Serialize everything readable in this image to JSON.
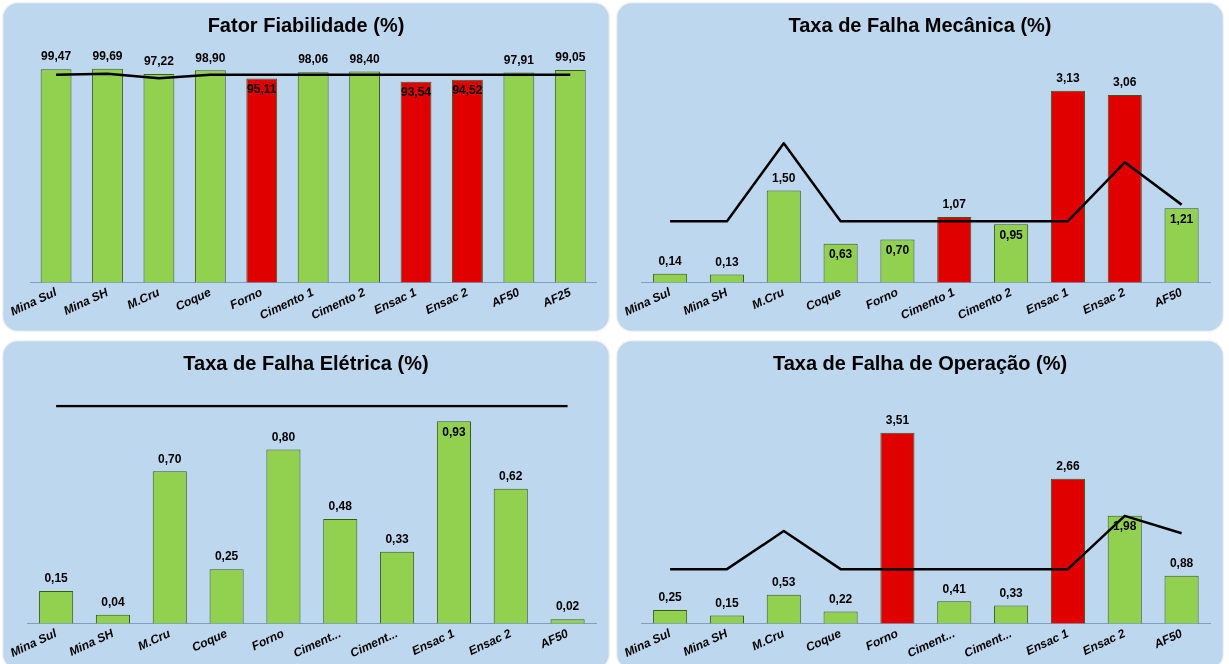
{
  "chart_data": [
    {
      "type": "bar",
      "title": "Fator Fiabilidade (%)",
      "categories": [
        "Mina Sul",
        "Mina SH",
        "M.Cru",
        "Coque",
        "Forno",
        "Cimento 1",
        "Cimento 2",
        "Ensac 1",
        "Ensac 2",
        "AF50",
        "AF25"
      ],
      "tick_labels": "x",
      "legend": false,
      "grid": false,
      "series": [
        {
          "values": [
            99.47,
            99.69,
            97.22,
            98.9,
            95.11,
            98.06,
            98.4,
            93.54,
            94.52,
            97.91,
            99.05
          ],
          "value_labels": [
            "99,47",
            "99,69",
            "97,22",
            "98,90",
            "95,11",
            "98,06",
            "98,40",
            "93,54",
            "94,52",
            "97,91",
            "99,05"
          ],
          "colors": [
            "#92d050",
            "#92d050",
            "#92d050",
            "#92d050",
            "#e00000",
            "#92d050",
            "#92d050",
            "#e00000",
            "#e00000",
            "#92d050",
            "#92d050"
          ]
        },
        {
          "type": "line",
          "color": "#000000",
          "values": [
            96.8,
            97.3,
            95.2,
            96.8,
            96.8,
            96.8,
            96.8,
            96.8,
            96.8,
            96.8,
            96.8
          ]
        }
      ]
    },
    {
      "type": "bar",
      "title": "Taxa de Falha Mecânica (%)",
      "categories": [
        "Mina Sul",
        "Mina SH",
        "M.Cru",
        "Coque",
        "Forno",
        "Cimento 1",
        "Cimento 2",
        "Ensac 1",
        "Ensac 2",
        "AF50"
      ],
      "tick_labels": "x",
      "legend": false,
      "grid": false,
      "series": [
        {
          "values": [
            0.14,
            0.13,
            1.5,
            0.63,
            0.7,
            1.07,
            0.95,
            3.13,
            3.06,
            1.21
          ],
          "value_labels": [
            "0,14",
            "0,13",
            "1,50",
            "0,63",
            "0,70",
            "1,07",
            "0,95",
            "3,13",
            "3,06",
            "1,21"
          ],
          "colors": [
            "#92d050",
            "#92d050",
            "#92d050",
            "#92d050",
            "#92d050",
            "#e00000",
            "#92d050",
            "#e00000",
            "#e00000",
            "#92d050"
          ]
        },
        {
          "type": "line",
          "color": "#000000",
          "values": [
            1.0,
            1.0,
            2.27,
            1.0,
            1.0,
            1.0,
            1.0,
            1.0,
            1.96,
            1.27
          ]
        }
      ]
    },
    {
      "type": "bar",
      "title": "Taxa de Falha Elétrica (%)",
      "categories": [
        "Mina Sul",
        "Mina SH",
        "M.Cru",
        "Coque",
        "Forno",
        "Ciment...",
        "Ciment...",
        "Ensac 1",
        "Ensac 2",
        "AF50"
      ],
      "tick_labels": "x",
      "legend": false,
      "grid": false,
      "series": [
        {
          "values": [
            0.15,
            0.04,
            0.7,
            0.25,
            0.8,
            0.48,
            0.33,
            0.93,
            0.62,
            0.02
          ],
          "value_labels": [
            "0,15",
            "0,04",
            "0,70",
            "0,25",
            "0,80",
            "0,48",
            "0,33",
            "0,93",
            "0,62",
            "0,02"
          ],
          "colors": [
            "#92d050",
            "#92d050",
            "#92d050",
            "#92d050",
            "#92d050",
            "#92d050",
            "#92d050",
            "#92d050",
            "#92d050",
            "#92d050"
          ]
        },
        {
          "type": "line",
          "color": "#000000",
          "values": [
            1.0,
            1.0,
            1.0,
            1.0,
            1.0,
            1.0,
            1.0,
            1.0,
            1.0,
            1.0
          ]
        }
      ]
    },
    {
      "type": "bar",
      "title": "Taxa de Falha de Operação (%)",
      "categories": [
        "Mina Sul",
        "Mina SH",
        "M.Cru",
        "Coque",
        "Forno",
        "Ciment...",
        "Ciment...",
        "Ensac 1",
        "Ensac 2",
        "AF50"
      ],
      "tick_labels": "x",
      "legend": false,
      "grid": false,
      "series": [
        {
          "values": [
            0.25,
            0.15,
            0.53,
            0.22,
            3.51,
            0.41,
            0.33,
            2.66,
            1.98,
            0.88
          ],
          "value_labels": [
            "0,25",
            "0,15",
            "0,53",
            "0,22",
            "3,51",
            "0,41",
            "0,33",
            "2,66",
            "1,98",
            "0,88"
          ],
          "colors": [
            "#92d050",
            "#92d050",
            "#92d050",
            "#92d050",
            "#e00000",
            "#92d050",
            "#92d050",
            "#e00000",
            "#92d050",
            "#92d050"
          ]
        },
        {
          "type": "line",
          "color": "#000000",
          "values": [
            1.0,
            1.0,
            1.7,
            1.0,
            1.0,
            1.0,
            1.0,
            1.0,
            1.98,
            1.66
          ]
        }
      ]
    }
  ]
}
